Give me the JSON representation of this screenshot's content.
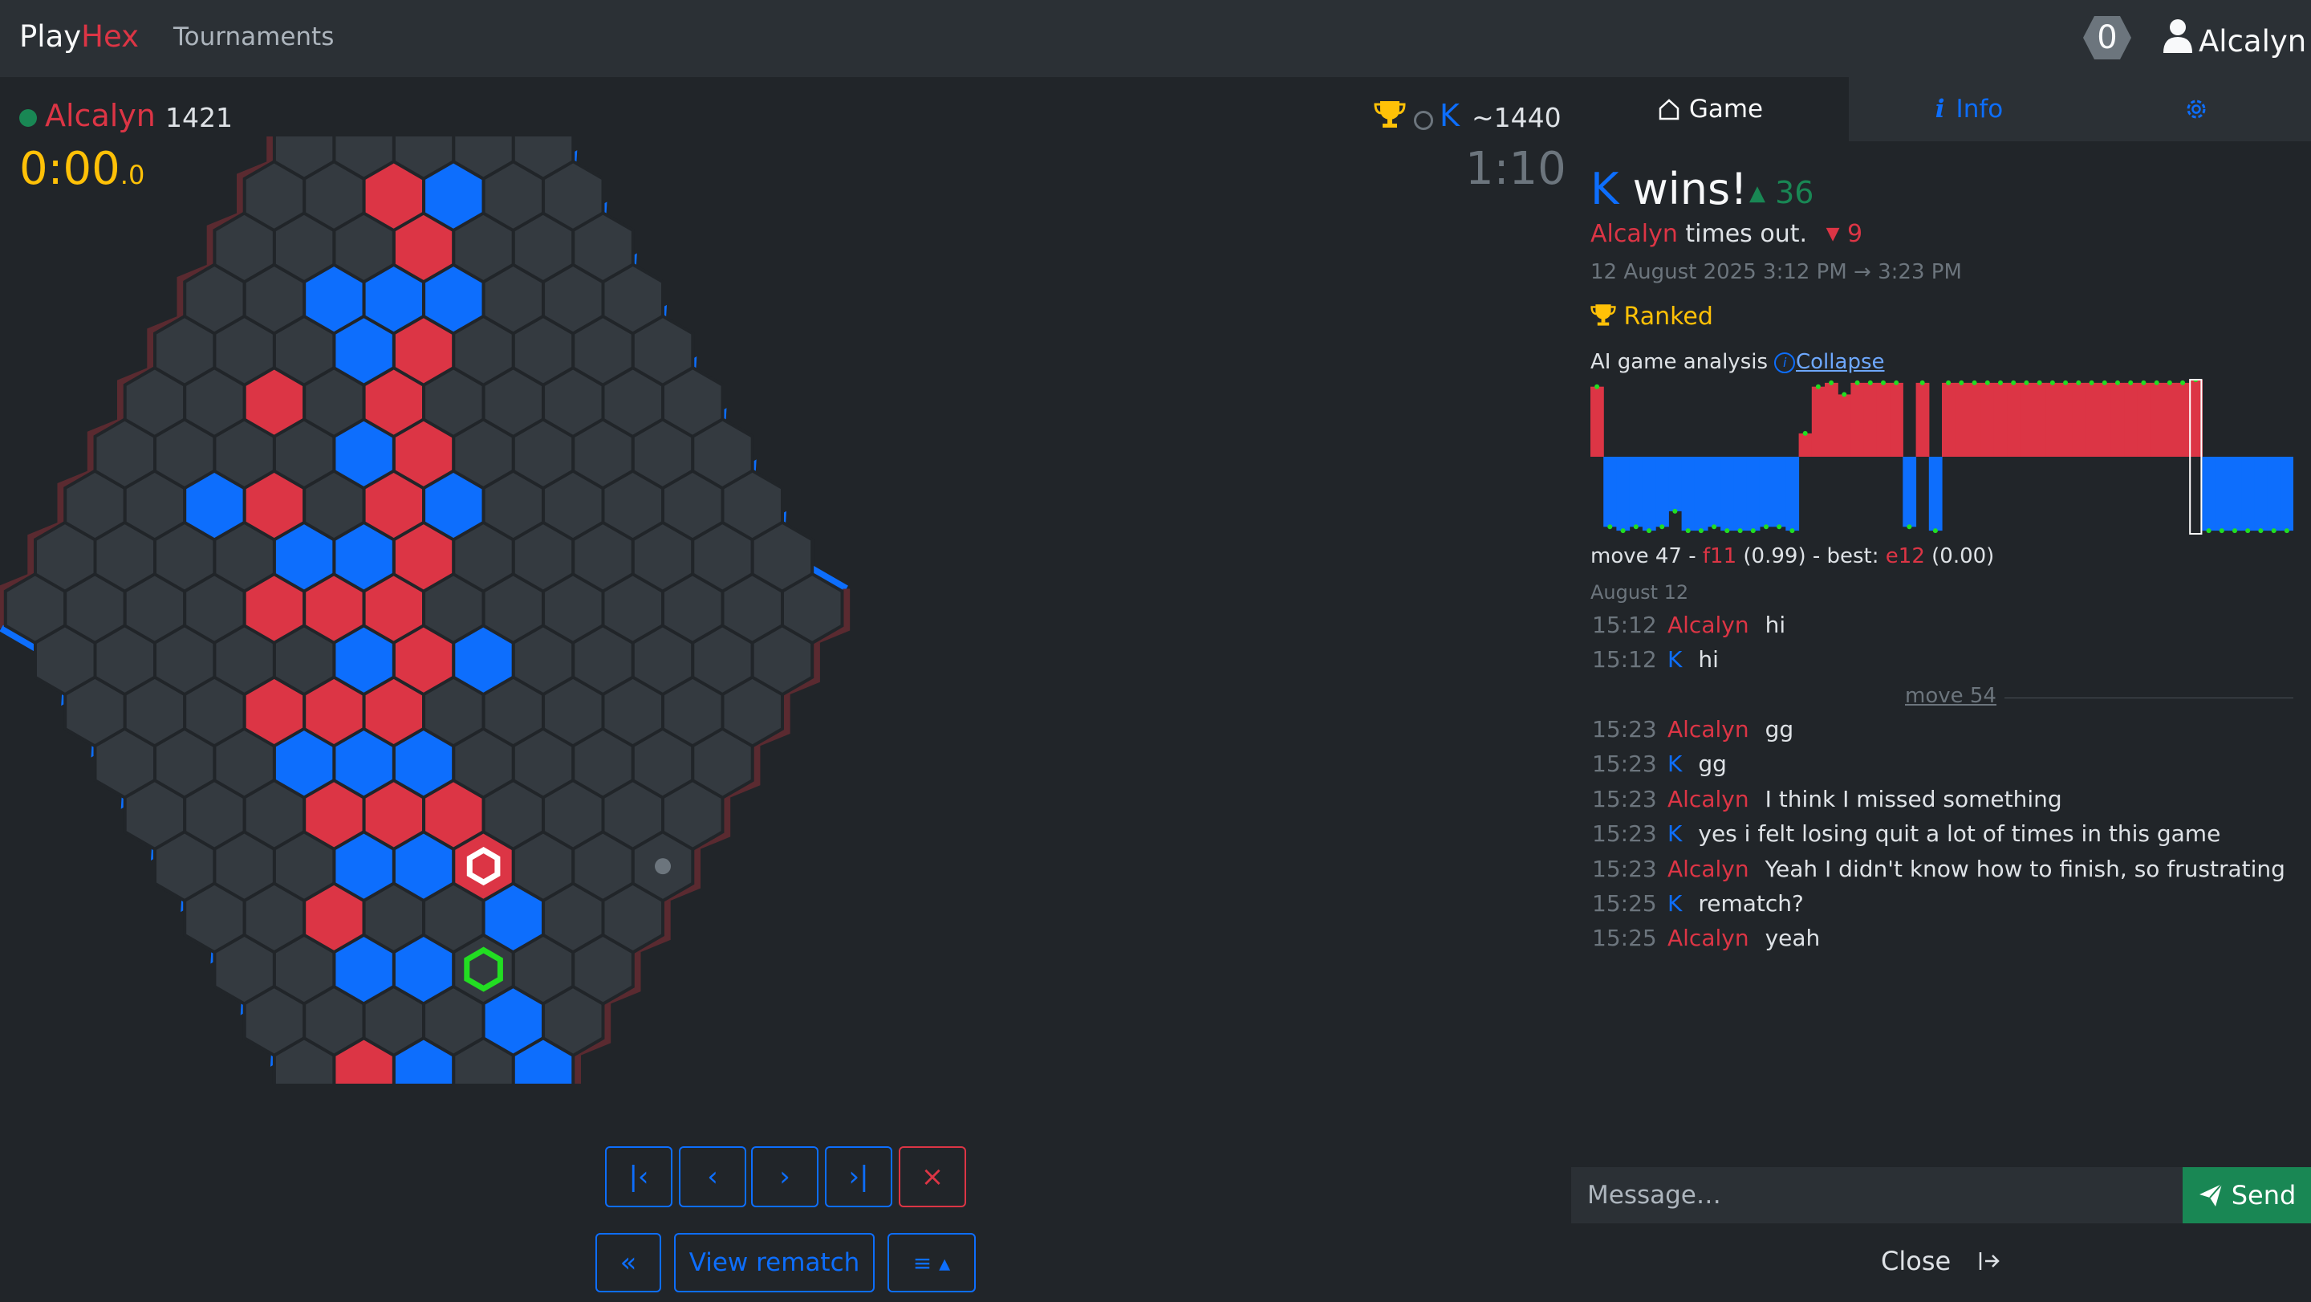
{
  "navbar": {
    "brand_play": "Play",
    "brand_hex": "Hex",
    "tournaments": "Tournaments",
    "notif_count": "0",
    "username": "Alcalyn"
  },
  "players": {
    "red": {
      "name": "Alcalyn",
      "rating": "1421",
      "clock_main": "0:00",
      "clock_tenths": ".0"
    },
    "blue": {
      "name": "K",
      "rating": "~1440",
      "clock": "1:10"
    }
  },
  "board": {
    "size": 14,
    "red_cells": [
      "c9",
      "b11",
      "c13",
      "d6",
      "d8",
      "e5",
      "e7",
      "e9",
      "f4",
      "f6",
      "f8",
      "f10",
      "g3",
      "g7",
      "g8",
      "h6",
      "h7",
      "i5",
      "i6",
      "j5",
      "k3",
      "k4",
      "m3",
      "f11"
    ],
    "blue_cells": [
      "b13",
      "c10",
      "c12",
      "d7",
      "d9",
      "e3",
      "e8",
      "e10",
      "f5",
      "f7",
      "f9",
      "g6",
      "h5",
      "h9",
      "i3",
      "i4",
      "i7",
      "j4",
      "k5",
      "l4",
      "m2",
      "d11",
      "e13",
      "e14",
      "f12"
    ],
    "last_move": "f11",
    "best_move": "e12",
    "swap_dot": "i14",
    "colors": {
      "red": "#dc3545",
      "blue": "#0d6efd",
      "empty": "#343a40",
      "border_dim": "#5a2a30"
    }
  },
  "controls": {
    "first": "|‹",
    "prev": "‹",
    "next": "›",
    "last": "›|",
    "close": "×",
    "rewind": "«",
    "view_rematch": "View rematch",
    "menu": "≡ ▴"
  },
  "sidebar": {
    "tabs": {
      "game": "Game",
      "info": "Info"
    },
    "result": {
      "winner": "K",
      "wins_text": "wins!",
      "winner_delta": "36",
      "loser": "Alcalyn",
      "loser_text": "times out.",
      "loser_delta": "9",
      "datetime": "12 August 2025 3:12 PM → 3:23 PM",
      "ranked": "Ranked"
    },
    "analysis": {
      "label": "AI game analysis",
      "collapse": "Collapse",
      "move_label": "move 47 - ",
      "move": "f11",
      "move_score": "(0.99)",
      "best_label": " - best: ",
      "best": "e12",
      "best_score": "(0.00)"
    },
    "chart_data": {
      "type": "bar",
      "x": [
        1,
        2,
        3,
        4,
        5,
        6,
        7,
        8,
        9,
        10,
        11,
        12,
        13,
        14,
        15,
        16,
        17,
        18,
        19,
        20,
        21,
        22,
        23,
        24,
        25,
        26,
        27,
        28,
        29,
        30,
        31,
        32,
        33,
        34,
        35,
        36,
        37,
        38,
        39,
        40,
        41,
        42,
        43,
        44,
        45,
        46,
        47,
        48,
        49,
        50,
        51,
        52,
        53,
        54
      ],
      "values": [
        0.9,
        -0.9,
        -0.95,
        -0.9,
        -0.95,
        -0.9,
        -0.7,
        -0.95,
        -0.95,
        -0.9,
        -0.95,
        -0.95,
        -0.95,
        -0.9,
        -0.9,
        -0.95,
        0.3,
        0.9,
        0.95,
        0.8,
        0.95,
        0.95,
        0.95,
        0.95,
        -0.9,
        0.95,
        -0.95,
        0.95,
        0.95,
        0.95,
        0.95,
        0.95,
        0.95,
        0.95,
        0.95,
        0.95,
        0.95,
        0.95,
        0.95,
        0.95,
        0.95,
        0.95,
        0.95,
        0.95,
        0.95,
        0.95,
        0.99,
        -0.95,
        -0.95,
        -0.95,
        -0.95,
        -0.95,
        -0.95,
        -0.95
      ],
      "ylim": [
        -1,
        1
      ],
      "highlight_move": 47
    },
    "chat": {
      "date": "August 12",
      "divider": "move 54",
      "before": [
        {
          "time": "15:12",
          "name": "Alcalyn",
          "color": "red",
          "msg": "hi"
        },
        {
          "time": "15:12",
          "name": "K",
          "color": "blue",
          "msg": "hi"
        }
      ],
      "after": [
        {
          "time": "15:23",
          "name": "Alcalyn",
          "color": "red",
          "msg": "gg"
        },
        {
          "time": "15:23",
          "name": "K",
          "color": "blue",
          "msg": "gg"
        },
        {
          "time": "15:23",
          "name": "Alcalyn",
          "color": "red",
          "msg": "I think I missed something"
        },
        {
          "time": "15:23",
          "name": "K",
          "color": "blue",
          "msg": "yes i felt losing quit a lot of times in this game"
        },
        {
          "time": "15:23",
          "name": "Alcalyn",
          "color": "red",
          "msg": "Yeah I didn't know how to finish, so frustrating"
        },
        {
          "time": "15:25",
          "name": "K",
          "color": "blue",
          "msg": "rematch?"
        },
        {
          "time": "15:25",
          "name": "Alcalyn",
          "color": "red",
          "msg": "yeah"
        }
      ]
    },
    "message_placeholder": "Message…",
    "send": "Send",
    "close": "Close"
  }
}
